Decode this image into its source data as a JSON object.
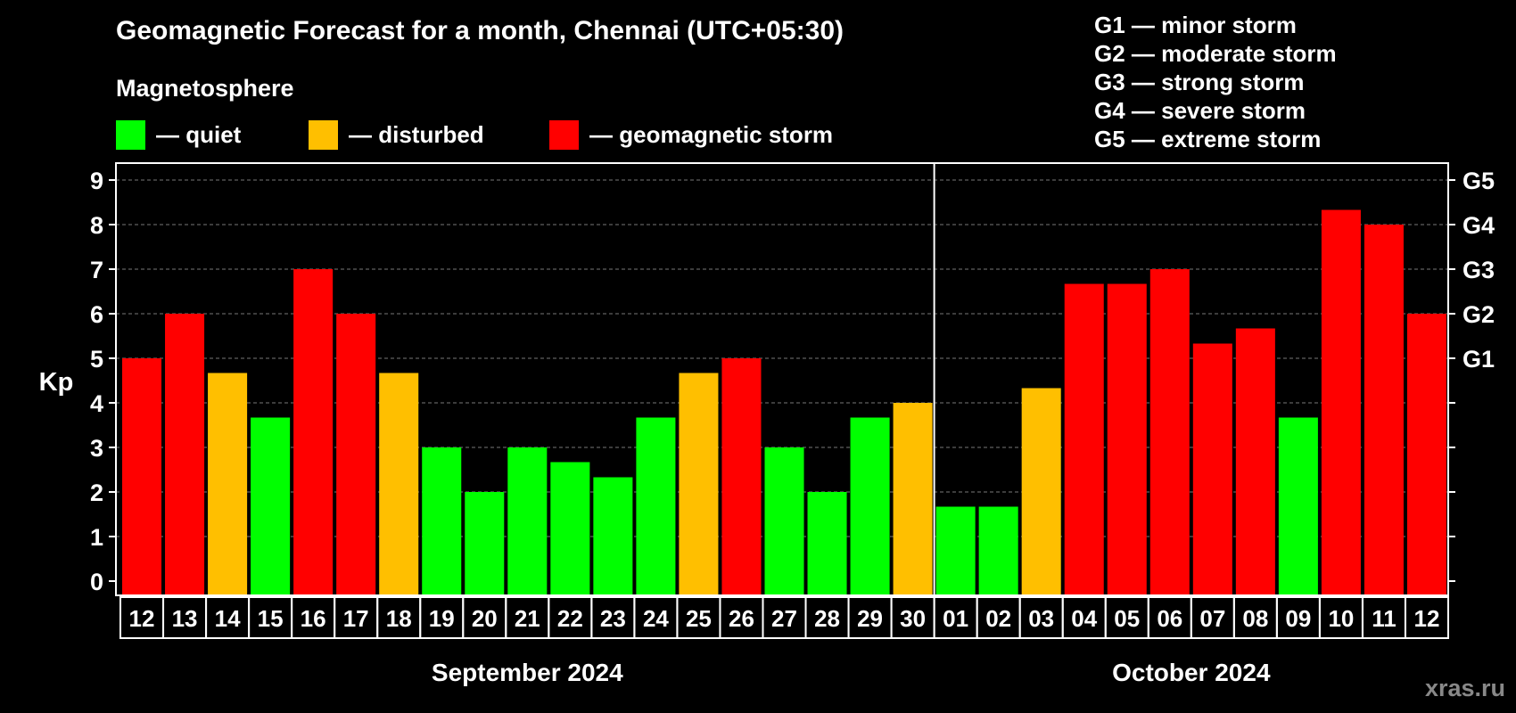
{
  "chart_data": {
    "type": "bar",
    "title": "Geomagnetic Forecast for a month, Chennai (UTC+05:30)",
    "subtitle": "Magnetosphere",
    "ylabel": "Kp",
    "ylim": [
      0,
      9
    ],
    "yticks": [
      "0",
      "1",
      "2",
      "3",
      "4",
      "5",
      "6",
      "7",
      "8",
      "9"
    ],
    "right_axis_labels": [
      {
        "value": 5,
        "label": "G1"
      },
      {
        "value": 6,
        "label": "G2"
      },
      {
        "value": 7,
        "label": "G3"
      },
      {
        "value": 8,
        "label": "G4"
      },
      {
        "value": 9,
        "label": "G5"
      }
    ],
    "grid": true,
    "categories": [
      "12",
      "13",
      "14",
      "15",
      "16",
      "17",
      "18",
      "19",
      "20",
      "21",
      "22",
      "23",
      "24",
      "25",
      "26",
      "27",
      "28",
      "29",
      "30",
      "01",
      "02",
      "03",
      "04",
      "05",
      "06",
      "07",
      "08",
      "09",
      "10",
      "11",
      "12"
    ],
    "values": [
      5,
      6,
      4.67,
      3.67,
      7,
      6,
      4.67,
      3,
      2,
      3,
      2.67,
      2.33,
      3.67,
      4.67,
      5,
      3,
      2,
      3.67,
      4,
      1.67,
      1.67,
      4.33,
      6.67,
      6.67,
      7,
      5.33,
      5.67,
      3.67,
      8.33,
      8,
      6
    ],
    "levels": [
      "storm",
      "storm",
      "disturbed",
      "quiet",
      "storm",
      "storm",
      "disturbed",
      "quiet",
      "quiet",
      "quiet",
      "quiet",
      "quiet",
      "quiet",
      "disturbed",
      "storm",
      "quiet",
      "quiet",
      "quiet",
      "disturbed",
      "quiet",
      "quiet",
      "disturbed",
      "storm",
      "storm",
      "storm",
      "storm",
      "storm",
      "quiet",
      "storm",
      "storm",
      "storm"
    ],
    "months": [
      {
        "label": "September 2024",
        "start": 0,
        "count": 19
      },
      {
        "label": "October 2024",
        "start": 19,
        "count": 12
      }
    ],
    "legend": [
      {
        "key": "quiet",
        "label": "— quiet",
        "color": "#00ff00"
      },
      {
        "key": "disturbed",
        "label": "— disturbed",
        "color": "#ffbf00"
      },
      {
        "key": "storm",
        "label": "— geomagnetic storm",
        "color": "#ff0000"
      }
    ],
    "storm_scale": [
      "G1 — minor storm",
      "G2 — moderate storm",
      "G3 — strong storm",
      "G4 — severe storm",
      "G5 — extreme storm"
    ]
  },
  "watermark": "xras.ru"
}
